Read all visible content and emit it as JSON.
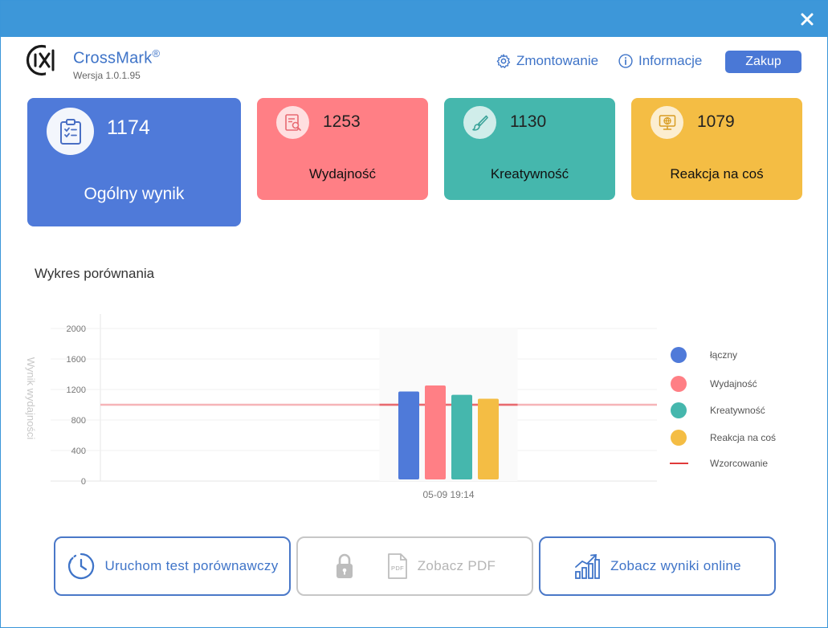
{
  "app": {
    "name": "CrossMark",
    "trademark": "®",
    "version": "Wersja 1.0.1.95"
  },
  "header": {
    "mount_label": "Zmontowanie",
    "info_label": "Informacje",
    "buy_label": "Zakup"
  },
  "cards": {
    "overall": {
      "score": "1174",
      "label": "Ogólny wynik",
      "color": "#4f7ad9"
    },
    "performance": {
      "score": "1253",
      "label": "Wydajność",
      "color": "#ff7f85"
    },
    "creativity": {
      "score": "1130",
      "label": "Kreatywność",
      "color": "#45b7ad"
    },
    "reaction": {
      "score": "1079",
      "label": "Reakcja na coś",
      "color": "#f4bd44"
    }
  },
  "chart_title": "Wykres porównania",
  "chart_data": {
    "type": "bar",
    "categories": [
      "05-09 19:14"
    ],
    "ylabel": "Wynik wydajności",
    "ylim": [
      0,
      2000
    ],
    "yticks": [
      0,
      400,
      800,
      1200,
      1600,
      2000
    ],
    "grid": true,
    "legend_position": "right",
    "series": [
      {
        "name": "łączny",
        "values": [
          1174
        ],
        "color": "#4f7ad9"
      },
      {
        "name": "Wydajność",
        "values": [
          1253
        ],
        "color": "#ff7f85"
      },
      {
        "name": "Kreatywność",
        "values": [
          1130
        ],
        "color": "#45b7ad"
      },
      {
        "name": "Reakcja na coś",
        "values": [
          1079
        ],
        "color": "#f4bd44"
      }
    ],
    "reference": {
      "name": "Wzorcowanie",
      "value": 1000,
      "color": "#e03a3a"
    }
  },
  "actions": {
    "benchmark_label": "Uruchom test porównawczy",
    "pdf_label": "Zobacz PDF",
    "pdf_icon_text": "PDF",
    "online_label": "Zobacz wyniki online"
  },
  "icons": {
    "close": "close-icon",
    "gear": "gear-icon",
    "info": "info-icon",
    "clipboard": "clipboard-icon",
    "document_search": "document-search-icon",
    "brush": "brush-icon",
    "globe_monitor": "globe-monitor-icon",
    "clock": "history-clock-icon",
    "lock": "lock-icon",
    "pdf": "pdf-file-icon",
    "bar_growth": "bar-chart-growth-icon"
  }
}
